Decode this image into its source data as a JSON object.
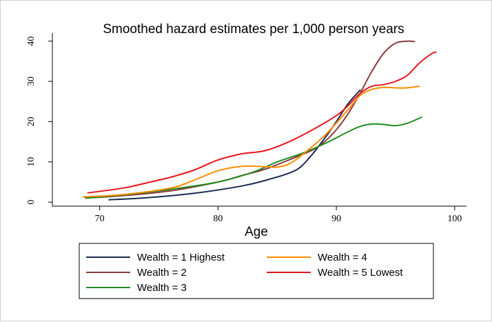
{
  "chart_data": {
    "type": "line",
    "title": "Smoothed hazard estimates per 1,000 person years",
    "xlabel": "Age",
    "ylabel": "",
    "xlim": [
      66,
      101
    ],
    "ylim": [
      -1,
      42
    ],
    "x_ticks": [
      "70",
      "80",
      "90",
      "100"
    ],
    "y_ticks": [
      "0",
      "10",
      "20",
      "30",
      "40"
    ],
    "grid": false,
    "legend_position": "bottom",
    "series": [
      {
        "name": "Wealth = 1 Highest",
        "color": "#1a2a4f",
        "points": [
          [
            70.8,
            0.6
          ],
          [
            74,
            1.1
          ],
          [
            78,
            2.2
          ],
          [
            82,
            4.0
          ],
          [
            84,
            5.4
          ],
          [
            86,
            7.2
          ],
          [
            87,
            8.8
          ],
          [
            88,
            12.0
          ],
          [
            89,
            15.8
          ],
          [
            90,
            20.0
          ],
          [
            91,
            24.5
          ],
          [
            92,
            27.8
          ]
        ]
      },
      {
        "name": "Wealth = 2",
        "color": "#8b3a3a",
        "points": [
          [
            68.8,
            1.0
          ],
          [
            72,
            1.6
          ],
          [
            76,
            2.8
          ],
          [
            80,
            5.0
          ],
          [
            82,
            6.6
          ],
          [
            84,
            8.2
          ],
          [
            86,
            10.5
          ],
          [
            88,
            13.0
          ],
          [
            89,
            15.0
          ],
          [
            90,
            18.0
          ],
          [
            91,
            22.0
          ],
          [
            92,
            27.0
          ],
          [
            93,
            32.5
          ],
          [
            94,
            37.0
          ],
          [
            95,
            39.5
          ],
          [
            96,
            40.0
          ],
          [
            96.6,
            39.9
          ]
        ]
      },
      {
        "name": "Wealth = 3",
        "color": "#1f8a1f",
        "points": [
          [
            68.8,
            1.0
          ],
          [
            72,
            1.8
          ],
          [
            76,
            3.2
          ],
          [
            80,
            5.0
          ],
          [
            83,
            7.5
          ],
          [
            85,
            10.0
          ],
          [
            87,
            12.0
          ],
          [
            89,
            14.5
          ],
          [
            91,
            17.5
          ],
          [
            92,
            18.8
          ],
          [
            93,
            19.4
          ],
          [
            94,
            19.3
          ],
          [
            95,
            19.0
          ],
          [
            96,
            19.6
          ],
          [
            97.2,
            21.1
          ]
        ]
      },
      {
        "name": "Wealth = 4",
        "color": "#ff8c00",
        "points": [
          [
            68.6,
            1.3
          ],
          [
            72,
            1.9
          ],
          [
            76,
            3.5
          ],
          [
            78,
            5.5
          ],
          [
            80,
            7.8
          ],
          [
            82,
            8.9
          ],
          [
            84,
            8.8
          ],
          [
            85,
            8.7
          ],
          [
            86,
            9.5
          ],
          [
            87,
            11.5
          ],
          [
            89,
            16.5
          ],
          [
            91,
            23.0
          ],
          [
            92,
            26.5
          ],
          [
            93,
            28.0
          ],
          [
            94,
            28.5
          ],
          [
            95,
            28.4
          ],
          [
            96,
            28.4
          ],
          [
            97,
            28.8
          ]
        ]
      },
      {
        "name": "Wealth = 5 Lowest",
        "color": "#e8141b",
        "points": [
          [
            69,
            2.3
          ],
          [
            72,
            3.5
          ],
          [
            74,
            4.8
          ],
          [
            76,
            6.2
          ],
          [
            78,
            8.0
          ],
          [
            80,
            10.5
          ],
          [
            82,
            12.0
          ],
          [
            84,
            12.8
          ],
          [
            86,
            15.0
          ],
          [
            88,
            18.0
          ],
          [
            90,
            21.5
          ],
          [
            91,
            24.0
          ],
          [
            92,
            27.0
          ],
          [
            93,
            28.8
          ],
          [
            94,
            29.2
          ],
          [
            95,
            30.0
          ],
          [
            96,
            31.5
          ],
          [
            97,
            34.5
          ],
          [
            98,
            36.8
          ],
          [
            98.4,
            37.3
          ]
        ]
      }
    ]
  }
}
